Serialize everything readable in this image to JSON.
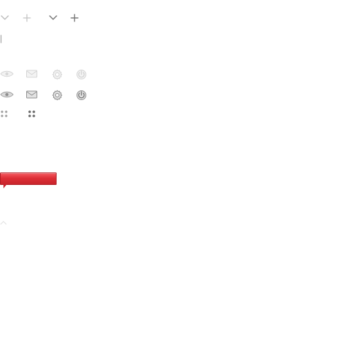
{
  "sprite": {
    "icons": [
      "chevron-down-icon",
      "plus-icon",
      "eye-icon",
      "mail-icon",
      "gear-icon",
      "power-icon",
      "grip-icon",
      "caret-up-icon"
    ],
    "colors": {
      "light_gray": "#d8d8d8",
      "mid_gray": "#9a9a9a",
      "dark_gray": "#6f6f6f",
      "callout_red": "#dd2f37"
    }
  }
}
